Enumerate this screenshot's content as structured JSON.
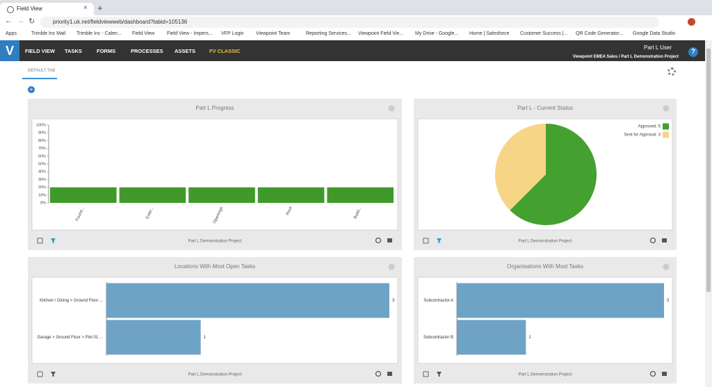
{
  "browser": {
    "tab_title": "Field View",
    "url": "priority1.uk.net/fieldviewweb/dashboard?tabid=105136",
    "bookmarks": [
      "Apps",
      "Trimble Inc Mail",
      "Trimble Inc - Calen...",
      "Field View",
      "Field View - Impers...",
      "VFP Login",
      "Viewpoint Team",
      "Reporting Services...",
      "Viewpoint Field Vie...",
      "My Drive - Google...",
      "Home | Salesforce",
      "Customer Success |...",
      "QR Code Generator...",
      "Google Data Studio"
    ]
  },
  "nav": {
    "items": [
      "FIELD VIEW",
      "TASKS",
      "FORMS",
      "PROCESSES",
      "ASSETS",
      "FV CLASSIC"
    ],
    "user": "Part L User",
    "context": "Viewpoint EMEA Sales / Part L Demonstration Project"
  },
  "tab": "DEFAULT TAB",
  "widgets": [
    {
      "title": "Part L Progress",
      "footer": "Part L Demonstration Project",
      "chart_data": {
        "type": "bar",
        "categories": [
          "Found...",
          "Exter...",
          "Openings",
          "Roof",
          "Build..."
        ],
        "values": [
          20,
          20,
          20,
          20,
          20
        ],
        "color": "#3f9a2b",
        "ylim": [
          0,
          100
        ],
        "yticks": [
          {
            "value": 0,
            "label": "0%"
          },
          {
            "value": 10,
            "label": "10%"
          },
          {
            "value": 20,
            "label": "20%"
          },
          {
            "value": 30,
            "label": "30%"
          },
          {
            "value": 40,
            "label": "40%"
          },
          {
            "value": 50,
            "label": "50%"
          },
          {
            "value": 60,
            "label": "60%"
          },
          {
            "value": 70,
            "label": "70%"
          },
          {
            "value": 80,
            "label": "80%"
          },
          {
            "value": 90,
            "label": "90%"
          },
          {
            "value": 100,
            "label": "100%"
          }
        ]
      }
    },
    {
      "title": "Part L - Current Status",
      "footer": "Part L Demonstration Project",
      "chart_data": {
        "type": "pie",
        "categories": [
          "Approved: 5",
          "Sent for Approval: 3"
        ],
        "values": [
          5,
          3
        ],
        "colors": [
          "#45a12f",
          "#f6d587"
        ],
        "legend": "top-right"
      }
    },
    {
      "title": "Locations With Most Open Tasks",
      "footer": "Part L Demonstration Project",
      "chart_data": {
        "type": "hbar",
        "categories": [
          "Kitchen / Dining > Ground Floor ...",
          "Garage > Ground Floor > Plot 01 ..."
        ],
        "values": [
          3,
          1
        ],
        "color": "#6fa3c6",
        "xlim": [
          0,
          3
        ]
      }
    },
    {
      "title": "Organisations With Most Tasks",
      "footer": "Part L Demonstration Project",
      "chart_data": {
        "type": "hbar",
        "categories": [
          "Subcontractor A",
          "Subcontractor B"
        ],
        "values": [
          3,
          1
        ],
        "color": "#6fa3c6",
        "xlim": [
          0,
          3
        ]
      }
    }
  ]
}
